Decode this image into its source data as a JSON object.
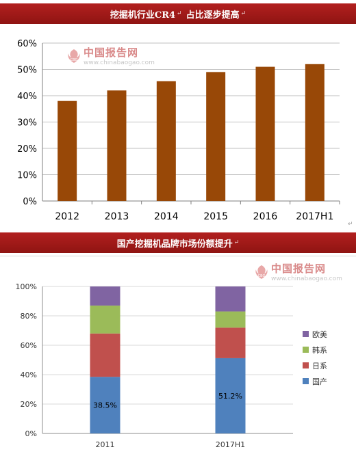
{
  "banners": [
    {
      "title": "挖掘机行业CR4",
      "tail": "占比逐步提高"
    },
    {
      "title": "国产挖掘机品牌市场份额提升"
    }
  ],
  "watermark": {
    "name": "中国报告网",
    "url": "www.chinabaogao.com",
    "badge": "CBG"
  },
  "colors": {
    "bar": "#984807",
    "guonei": "#4f81bd",
    "rixi": "#c0504d",
    "hanxi": "#9bbb59",
    "oumei": "#8064a2",
    "banner": "#a31a18"
  },
  "chart_data": [
    {
      "type": "bar",
      "categories": [
        "2012",
        "2013",
        "2014",
        "2015",
        "2016",
        "2017H1"
      ],
      "values": [
        38,
        42,
        45.5,
        49,
        51,
        52
      ],
      "ylim": [
        0,
        60
      ],
      "yticks": [
        "0%",
        "10%",
        "20%",
        "30%",
        "40%",
        "50%",
        "60%"
      ],
      "grid": true
    },
    {
      "type": "bar",
      "stacked": true,
      "categories": [
        "2011",
        "2017H1"
      ],
      "series": [
        {
          "name": "国产",
          "values": [
            38.5,
            51.2
          ],
          "labels": [
            "38.5%",
            "51.2%"
          ]
        },
        {
          "name": "日系",
          "values": [
            29.5,
            20.8
          ]
        },
        {
          "name": "韩系",
          "values": [
            19,
            11
          ]
        },
        {
          "name": "欧美",
          "values": [
            13,
            17
          ]
        }
      ],
      "ylim": [
        0,
        100
      ],
      "yticks": [
        "0%",
        "20%",
        "40%",
        "60%",
        "80%",
        "100%"
      ],
      "legend": "right",
      "grid": true
    }
  ]
}
